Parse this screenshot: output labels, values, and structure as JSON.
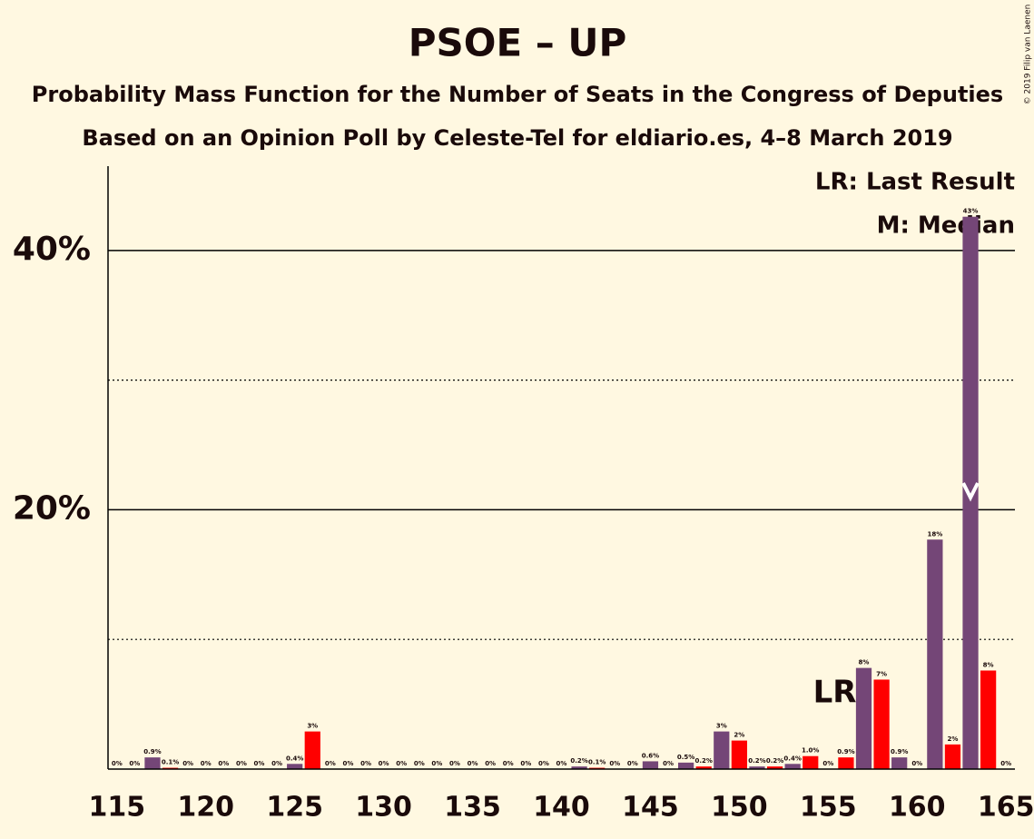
{
  "chart_data": {
    "type": "bar",
    "title": "PSOE – UP",
    "subtitle": "Probability Mass Function for the Number of Seats in the Congress of Deputies",
    "subtitle2": "Based on an Opinion Poll by Celeste-Tel for eldiario.es, 4–8 March 2019",
    "copyright": "© 2019 Filip van Laenen",
    "legend_lr": "LR: Last Result",
    "legend_median": "M: Median",
    "lr_label": "LR",
    "last_result": 157,
    "median": 163,
    "x": [
      115,
      116,
      117,
      118,
      119,
      120,
      121,
      122,
      123,
      124,
      125,
      126,
      127,
      128,
      129,
      130,
      131,
      132,
      133,
      134,
      135,
      136,
      137,
      138,
      139,
      140,
      141,
      142,
      143,
      144,
      145,
      146,
      147,
      148,
      149,
      150,
      151,
      152,
      153,
      154,
      155,
      156,
      157,
      158,
      159,
      160,
      161,
      162,
      163,
      164,
      165
    ],
    "values": [
      0,
      0,
      0.9,
      0.1,
      0,
      0,
      0,
      0,
      0,
      0,
      0.4,
      2.9,
      0,
      0,
      0,
      0,
      0,
      0,
      0,
      0,
      0,
      0,
      0,
      0,
      0,
      0,
      0.2,
      0.1,
      0,
      0,
      0.6,
      0,
      0.5,
      0.2,
      2.9,
      2.2,
      0.2,
      0.2,
      0.4,
      1.0,
      0,
      0.9,
      7.8,
      6.9,
      0.9,
      0,
      17.7,
      1.9,
      42.6,
      7.6,
      0
    ],
    "value_labels": [
      "0%",
      "0%",
      "0.9%",
      "0.1%",
      "0%",
      "0%",
      "0%",
      "0%",
      "0%",
      "0%",
      "0.4%",
      "3%",
      "0%",
      "0%",
      "0%",
      "0%",
      "0%",
      "0%",
      "0%",
      "0%",
      "0%",
      "0%",
      "0%",
      "0%",
      "0%",
      "0%",
      "0.2%",
      "0.1%",
      "0%",
      "0%",
      "0.6%",
      "0%",
      "0.5%",
      "0.2%",
      "3%",
      "2%",
      "0.2%",
      "0.2%",
      "0.4%",
      "1.0%",
      "0%",
      "0.9%",
      "8%",
      "7%",
      "0.9%",
      "0%",
      "18%",
      "2%",
      "43%",
      "8%",
      "0%"
    ],
    "colors": [
      "#744677",
      "#ff0000"
    ],
    "xlim": [
      114.5,
      165.5
    ],
    "xticks": [
      115,
      120,
      125,
      130,
      135,
      140,
      145,
      150,
      155,
      160,
      165
    ],
    "ylim": [
      0,
      46.5
    ],
    "yticks": [
      {
        "value": 20,
        "label": "20%"
      },
      {
        "value": 40,
        "label": "40%"
      }
    ],
    "minor_gridlines": [
      10,
      30
    ],
    "grid": true
  }
}
